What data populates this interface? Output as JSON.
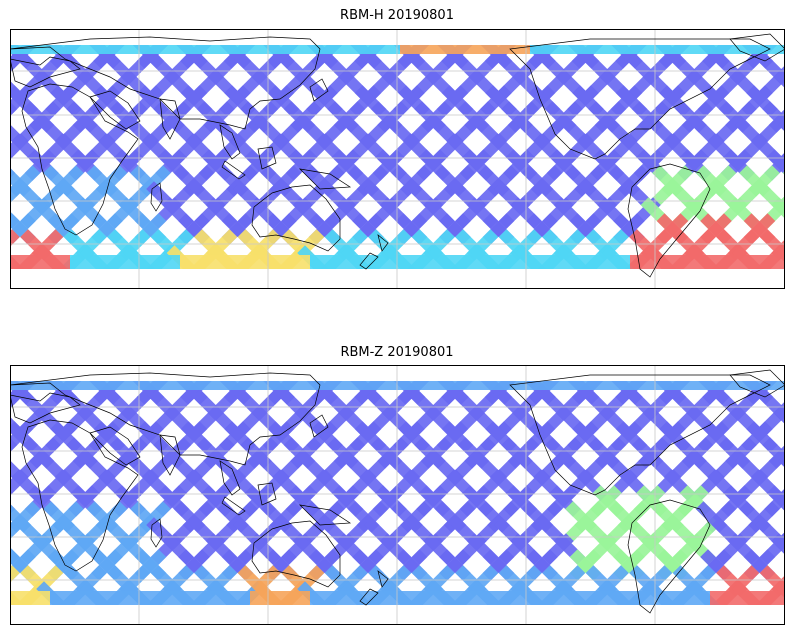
{
  "figure": {
    "panels": [
      {
        "title": "RBM-H 20190801",
        "zones": [
          {
            "region": "arctic",
            "color": "#4fd6f5"
          },
          {
            "region": "north-pacific",
            "color": "#f6a45a"
          },
          {
            "region": "tropics",
            "color": "#6a6af2"
          },
          {
            "region": "south-indian",
            "color": "#5fc8f3"
          },
          {
            "region": "southern-ocean-atlantic",
            "color": "#f26a6a"
          },
          {
            "region": "southern-ocean-pacific",
            "color": "#f7e06a"
          }
        ]
      },
      {
        "title": "RBM-Z 20190801",
        "zones": [
          {
            "region": "arctic",
            "color": "#6a9af5"
          },
          {
            "region": "tropics",
            "color": "#6a6af2"
          },
          {
            "region": "south-atlantic",
            "color": "#9af59a"
          },
          {
            "region": "southern-ocean-atlantic",
            "color": "#f27a6a"
          },
          {
            "region": "southern-ocean-indian",
            "color": "#f7e06a"
          }
        ]
      }
    ],
    "colors": {
      "blue": "#6a6af2",
      "light_blue": "#5fa8f5",
      "cyan": "#4fd6f5",
      "green": "#9af59a",
      "yellow": "#f7e06a",
      "orange": "#f6a45a",
      "red": "#f26a6a"
    }
  }
}
